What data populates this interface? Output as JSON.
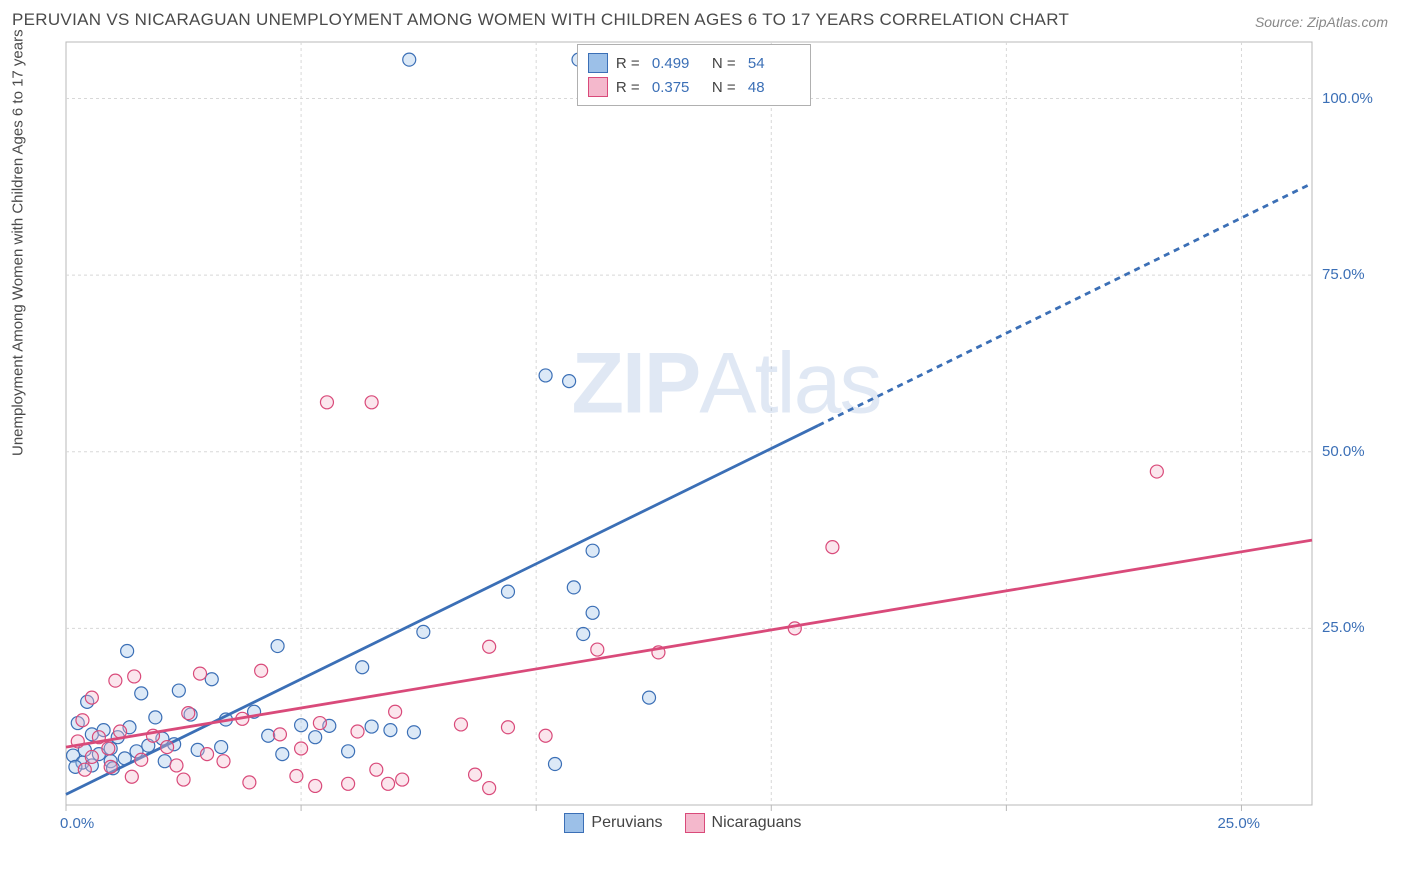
{
  "title": "PERUVIAN VS NICARAGUAN UNEMPLOYMENT AMONG WOMEN WITH CHILDREN AGES 6 TO 17 YEARS CORRELATION CHART",
  "source": "Source: ZipAtlas.com",
  "y_axis_label": "Unemployment Among Women with Children Ages 6 to 17 years",
  "watermark": {
    "zip": "ZIP",
    "atlas": "Atlas"
  },
  "chart": {
    "type": "scatter",
    "background_color": "#ffffff",
    "plot_border_color": "#b8b8b8",
    "grid_color": "#d8d8d8",
    "grid_dash": "3,3",
    "tick_label_color": "#3b6fb6",
    "axis_label_color": "#4a4a4a",
    "title_color": "#4a4a4a",
    "title_fontsize": 17,
    "axis_fontsize": 15,
    "xlim": [
      0,
      26.5
    ],
    "ylim": [
      0,
      108
    ],
    "x_ticks": [
      0,
      5,
      10,
      15,
      20,
      25
    ],
    "x_tick_labels": [
      "0.0%",
      "",
      "",
      "",
      "",
      "25.0%"
    ],
    "y_ticks": [
      25,
      50,
      75,
      100
    ],
    "y_tick_labels": [
      "25.0%",
      "50.0%",
      "75.0%",
      "100.0%"
    ],
    "marker_radius": 6.5,
    "marker_stroke_width": 1.2,
    "marker_fill_opacity": 0.35,
    "series": [
      {
        "name": "Peruvians",
        "color_stroke": "#3b6fb6",
        "color_fill": "#9cc0e8",
        "r_value": "0.499",
        "n_value": "54",
        "trend": {
          "x1": 0,
          "y1": 1.5,
          "x2": 26.5,
          "y2": 88,
          "solid_until_x": 16,
          "dash": "6,5",
          "width": 2.8
        },
        "points": [
          [
            7.3,
            105.5
          ],
          [
            10.9,
            105.5
          ],
          [
            10.2,
            60.8
          ],
          [
            10.7,
            60
          ],
          [
            11.2,
            36
          ],
          [
            9.4,
            30.2
          ],
          [
            10.8,
            30.8
          ],
          [
            11.2,
            27.2
          ],
          [
            7.6,
            24.5
          ],
          [
            11,
            24.2
          ],
          [
            4.5,
            22.5
          ],
          [
            1.3,
            21.8
          ],
          [
            6.3,
            19.5
          ],
          [
            3.1,
            17.8
          ],
          [
            2.4,
            16.2
          ],
          [
            1.6,
            15.8
          ],
          [
            12.4,
            15.2
          ],
          [
            0.45,
            14.6
          ],
          [
            4.0,
            13.2
          ],
          [
            2.65,
            12.8
          ],
          [
            1.9,
            12.4
          ],
          [
            3.4,
            12.1
          ],
          [
            0.25,
            11.6
          ],
          [
            5.6,
            11.2
          ],
          [
            5.0,
            11.3
          ],
          [
            6.5,
            11.1
          ],
          [
            1.35,
            11.0
          ],
          [
            0.8,
            10.6
          ],
          [
            6.9,
            10.6
          ],
          [
            7.4,
            10.3
          ],
          [
            4.3,
            9.8
          ],
          [
            0.55,
            10.0
          ],
          [
            1.1,
            9.6
          ],
          [
            2.05,
            9.4
          ],
          [
            5.3,
            9.6
          ],
          [
            2.3,
            8.6
          ],
          [
            1.75,
            8.4
          ],
          [
            3.3,
            8.2
          ],
          [
            0.95,
            8.0
          ],
          [
            0.4,
            7.8
          ],
          [
            1.5,
            7.6
          ],
          [
            6.0,
            7.6
          ],
          [
            0.7,
            7.2
          ],
          [
            0.15,
            7.0
          ],
          [
            1.25,
            6.6
          ],
          [
            0.95,
            6.2
          ],
          [
            2.1,
            6.2
          ],
          [
            0.35,
            6.0
          ],
          [
            0.55,
            5.6
          ],
          [
            0.2,
            5.4
          ],
          [
            2.8,
            7.8
          ],
          [
            4.6,
            7.2
          ],
          [
            10.4,
            5.8
          ],
          [
            1.0,
            5.2
          ]
        ]
      },
      {
        "name": "Nicaguans_actual_Nicaraguans",
        "label": "Nicaraguans",
        "color_stroke": "#d94a7a",
        "color_fill": "#f4b8cc",
        "r_value": "0.375",
        "n_value": "48",
        "trend": {
          "x1": 0,
          "y1": 8.2,
          "x2": 26.5,
          "y2": 37.5,
          "solid_until_x": 26.5,
          "dash": "",
          "width": 2.8
        },
        "points": [
          [
            5.55,
            57
          ],
          [
            6.5,
            57
          ],
          [
            23.2,
            47.2
          ],
          [
            16.3,
            36.5
          ],
          [
            15.5,
            25
          ],
          [
            9.0,
            22.4
          ],
          [
            12.6,
            21.6
          ],
          [
            11.3,
            22.0
          ],
          [
            4.15,
            19.0
          ],
          [
            2.85,
            18.6
          ],
          [
            1.45,
            18.2
          ],
          [
            1.05,
            17.6
          ],
          [
            0.55,
            15.2
          ],
          [
            2.6,
            13.0
          ],
          [
            7.0,
            13.2
          ],
          [
            3.75,
            12.2
          ],
          [
            0.35,
            12.0
          ],
          [
            5.4,
            11.6
          ],
          [
            8.4,
            11.4
          ],
          [
            6.2,
            10.4
          ],
          [
            1.15,
            10.4
          ],
          [
            4.55,
            10.0
          ],
          [
            1.85,
            9.8
          ],
          [
            0.7,
            9.6
          ],
          [
            9.4,
            11.0
          ],
          [
            0.25,
            9.0
          ],
          [
            2.15,
            8.2
          ],
          [
            0.9,
            8.0
          ],
          [
            5.0,
            8.0
          ],
          [
            3.0,
            7.2
          ],
          [
            10.2,
            9.8
          ],
          [
            0.55,
            6.8
          ],
          [
            1.6,
            6.4
          ],
          [
            3.35,
            6.2
          ],
          [
            2.35,
            5.6
          ],
          [
            0.95,
            5.4
          ],
          [
            6.6,
            5.0
          ],
          [
            0.4,
            5.0
          ],
          [
            4.9,
            4.1
          ],
          [
            1.4,
            4.0
          ],
          [
            8.7,
            4.3
          ],
          [
            7.15,
            3.6
          ],
          [
            2.5,
            3.6
          ],
          [
            3.9,
            3.2
          ],
          [
            6.0,
            3.0
          ],
          [
            6.85,
            3.0
          ],
          [
            5.3,
            2.7
          ],
          [
            9.0,
            2.4
          ]
        ]
      }
    ]
  },
  "legend_top": {
    "r_label": "R =",
    "n_label": "N ="
  },
  "legend_bottom": {
    "items": [
      "Peruvians",
      "Nicaraguans"
    ]
  }
}
